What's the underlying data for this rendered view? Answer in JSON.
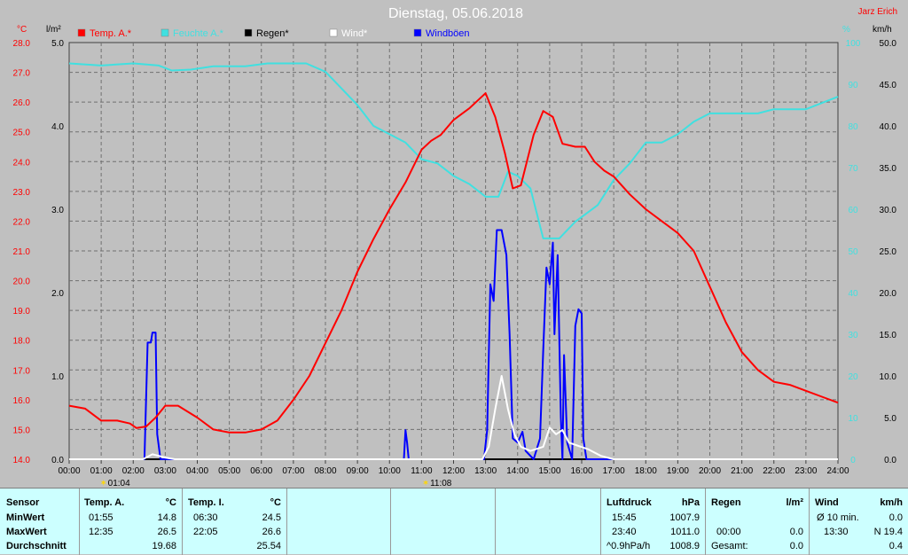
{
  "title": "Dienstag, 05.06.2018",
  "author": "Jarz Erich",
  "colors": {
    "temp": "#ff0000",
    "humidity": "#40e0e0",
    "rain": "#000000",
    "wind": "#ffffff",
    "gust": "#0000ff",
    "grid": "#707070",
    "axisLeft": "#ff0000",
    "axisHum": "#40e0e0"
  },
  "chart_data": {
    "type": "line",
    "title": "Dienstag, 05.06.2018",
    "legend": [
      {
        "label": "Temp. A.*",
        "color": "#ff0000"
      },
      {
        "label": "Feuchte A.*",
        "color": "#40e0e0"
      },
      {
        "label": "Regen*",
        "color": "#000000"
      },
      {
        "label": "Wind*",
        "color": "#ffffff"
      },
      {
        "label": "Windböen",
        "color": "#0000ff"
      }
    ],
    "axes": {
      "temp": {
        "unit": "°C",
        "min": 14.0,
        "max": 28.0,
        "ticks": [
          "14.0",
          "15.0",
          "16.0",
          "17.0",
          "18.0",
          "19.0",
          "20.0",
          "21.0",
          "22.0",
          "23.0",
          "24.0",
          "25.0",
          "26.0",
          "27.0",
          "28.0"
        ]
      },
      "rain": {
        "unit": "l/m²",
        "min": 0.0,
        "max": 5.0,
        "ticks": [
          "0.0",
          "1.0",
          "2.0",
          "3.0",
          "4.0",
          "5.0"
        ]
      },
      "humidity": {
        "unit": "%",
        "min": 0,
        "max": 100,
        "ticks": [
          "0",
          "10",
          "20",
          "30",
          "40",
          "50",
          "60",
          "70",
          "80",
          "90",
          "100"
        ]
      },
      "wind": {
        "unit": "km/h",
        "min": 0.0,
        "max": 50.0,
        "ticks": [
          "0.0",
          "5.0",
          "10.0",
          "15.0",
          "20.0",
          "25.0",
          "30.0",
          "35.0",
          "40.0",
          "45.0",
          "50.0"
        ]
      },
      "x": {
        "min": 0,
        "max": 24,
        "ticks": [
          "00:00",
          "01:00",
          "02:00",
          "03:00",
          "04:00",
          "05:00",
          "06:00",
          "07:00",
          "08:00",
          "09:00",
          "10:00",
          "11:00",
          "12:00",
          "13:00",
          "14:00",
          "15:00",
          "16:00",
          "17:00",
          "18:00",
          "19:00",
          "20:00",
          "21:00",
          "22:00",
          "23:00",
          "24:00"
        ]
      }
    },
    "markers": [
      {
        "label": "01:04",
        "x": 1.07
      },
      {
        "label": "11:08",
        "x": 11.13
      }
    ],
    "series": [
      {
        "name": "Temp. A.*",
        "axis": "temp",
        "points": [
          [
            0,
            15.8
          ],
          [
            0.5,
            15.7
          ],
          [
            1,
            15.3
          ],
          [
            1.5,
            15.3
          ],
          [
            1.9,
            15.2
          ],
          [
            2.1,
            15.05
          ],
          [
            2.4,
            15.1
          ],
          [
            2.7,
            15.4
          ],
          [
            3.0,
            15.8
          ],
          [
            3.4,
            15.8
          ],
          [
            4,
            15.4
          ],
          [
            4.5,
            15.0
          ],
          [
            5,
            14.9
          ],
          [
            5.5,
            14.9
          ],
          [
            6,
            15.0
          ],
          [
            6.5,
            15.3
          ],
          [
            7,
            16.0
          ],
          [
            7.5,
            16.8
          ],
          [
            8,
            17.9
          ],
          [
            8.5,
            19.0
          ],
          [
            9,
            20.3
          ],
          [
            9.5,
            21.4
          ],
          [
            10,
            22.4
          ],
          [
            10.5,
            23.3
          ],
          [
            11,
            24.4
          ],
          [
            11.3,
            24.7
          ],
          [
            11.6,
            24.9
          ],
          [
            12,
            25.4
          ],
          [
            12.5,
            25.8
          ],
          [
            12.8,
            26.1
          ],
          [
            13.0,
            26.3
          ],
          [
            13.3,
            25.5
          ],
          [
            13.6,
            24.3
          ],
          [
            13.85,
            23.1
          ],
          [
            14.1,
            23.2
          ],
          [
            14.5,
            24.9
          ],
          [
            14.8,
            25.7
          ],
          [
            15.1,
            25.5
          ],
          [
            15.4,
            24.6
          ],
          [
            15.8,
            24.5
          ],
          [
            16.1,
            24.5
          ],
          [
            16.4,
            24.0
          ],
          [
            16.7,
            23.7
          ],
          [
            17,
            23.5
          ],
          [
            17.5,
            22.9
          ],
          [
            18,
            22.4
          ],
          [
            18.5,
            22.0
          ],
          [
            19,
            21.6
          ],
          [
            19.5,
            21.0
          ],
          [
            20,
            19.8
          ],
          [
            20.5,
            18.6
          ],
          [
            21,
            17.6
          ],
          [
            21.5,
            17.0
          ],
          [
            22,
            16.6
          ],
          [
            22.5,
            16.5
          ],
          [
            23,
            16.3
          ],
          [
            23.5,
            16.1
          ],
          [
            24,
            15.9
          ]
        ]
      },
      {
        "name": "Feuchte A.*",
        "axis": "humidity",
        "points": [
          [
            0,
            95
          ],
          [
            1,
            94.5
          ],
          [
            2,
            95
          ],
          [
            2.8,
            94.5
          ],
          [
            3.2,
            93.3
          ],
          [
            3.8,
            93.5
          ],
          [
            4.5,
            94.3
          ],
          [
            5.5,
            94.3
          ],
          [
            6.2,
            95
          ],
          [
            7.4,
            95
          ],
          [
            8,
            93
          ],
          [
            8.5,
            89
          ],
          [
            9,
            85
          ],
          [
            9.5,
            80
          ],
          [
            10,
            78
          ],
          [
            10.5,
            76
          ],
          [
            11,
            72
          ],
          [
            11.5,
            71
          ],
          [
            12,
            68
          ],
          [
            12.5,
            66
          ],
          [
            13,
            63
          ],
          [
            13.4,
            63
          ],
          [
            13.7,
            69
          ],
          [
            14.0,
            68
          ],
          [
            14.4,
            65
          ],
          [
            14.8,
            53
          ],
          [
            15.3,
            53
          ],
          [
            15.8,
            57
          ],
          [
            16.5,
            61
          ],
          [
            17,
            67
          ],
          [
            17.5,
            71
          ],
          [
            18,
            76
          ],
          [
            18.5,
            76
          ],
          [
            19,
            78
          ],
          [
            19.5,
            81
          ],
          [
            20,
            83
          ],
          [
            21,
            83
          ],
          [
            21.5,
            83
          ],
          [
            22,
            84
          ],
          [
            23,
            84
          ],
          [
            24,
            87
          ]
        ]
      },
      {
        "name": "Regen*",
        "axis": "rain",
        "points": [
          [
            0,
            0
          ],
          [
            24,
            0
          ]
        ]
      },
      {
        "name": "Wind*",
        "axis": "wind",
        "points": [
          [
            0,
            0
          ],
          [
            2.3,
            0
          ],
          [
            2.6,
            0.6
          ],
          [
            3.0,
            0.2
          ],
          [
            3.3,
            0
          ],
          [
            12.9,
            0
          ],
          [
            13.1,
            1.5
          ],
          [
            13.3,
            6
          ],
          [
            13.5,
            10
          ],
          [
            13.7,
            6
          ],
          [
            13.9,
            3
          ],
          [
            14.1,
            1.5
          ],
          [
            14.4,
            1.0
          ],
          [
            14.8,
            1.5
          ],
          [
            15.0,
            3.8
          ],
          [
            15.2,
            3.0
          ],
          [
            15.4,
            3.5
          ],
          [
            15.6,
            2.0
          ],
          [
            15.9,
            1.6
          ],
          [
            16.2,
            1.2
          ],
          [
            16.6,
            0.4
          ],
          [
            17,
            0
          ],
          [
            24,
            0
          ]
        ]
      },
      {
        "name": "Windböen",
        "axis": "wind",
        "points": [
          [
            0,
            0
          ],
          [
            2.35,
            0
          ],
          [
            2.45,
            14
          ],
          [
            2.55,
            14
          ],
          [
            2.6,
            15.2
          ],
          [
            2.7,
            15.2
          ],
          [
            2.75,
            3.0
          ],
          [
            2.85,
            0
          ],
          [
            10.45,
            0
          ],
          [
            10.5,
            3.5
          ],
          [
            10.55,
            2.0
          ],
          [
            10.6,
            0
          ],
          [
            12.95,
            0
          ],
          [
            13.05,
            3.5
          ],
          [
            13.15,
            21
          ],
          [
            13.25,
            19
          ],
          [
            13.35,
            27.5
          ],
          [
            13.5,
            27.5
          ],
          [
            13.65,
            24.5
          ],
          [
            13.75,
            15
          ],
          [
            13.85,
            2.5
          ],
          [
            14.0,
            2.0
          ],
          [
            14.15,
            3.3
          ],
          [
            14.25,
            1.0
          ],
          [
            14.5,
            0
          ],
          [
            14.7,
            2.5
          ],
          [
            14.8,
            13
          ],
          [
            14.9,
            23
          ],
          [
            15.0,
            21
          ],
          [
            15.1,
            26
          ],
          [
            15.15,
            15
          ],
          [
            15.25,
            24.5
          ],
          [
            15.35,
            5
          ],
          [
            15.4,
            0
          ],
          [
            15.45,
            12.5
          ],
          [
            15.55,
            2.0
          ],
          [
            15.7,
            0
          ],
          [
            15.8,
            16
          ],
          [
            15.9,
            18
          ],
          [
            16.0,
            17.5
          ],
          [
            16.05,
            2.5
          ],
          [
            16.15,
            0
          ],
          [
            24,
            0
          ]
        ]
      }
    ]
  },
  "stats": {
    "sensor": {
      "header": "Sensor",
      "rows": [
        "MinWert",
        "MaxWert",
        "Durchschnitt"
      ]
    },
    "temp_a": {
      "header": "Temp. A.",
      "unit": "°C",
      "min_time": "01:55",
      "min_val": "14.8",
      "max_time": "12:35",
      "max_val": "26.5",
      "avg": "19.68"
    },
    "temp_i": {
      "header": "Temp. I.",
      "unit": "°C",
      "min_time": "06:30",
      "min_val": "24.5",
      "max_time": "22:05",
      "max_val": "26.6",
      "avg": "25.54"
    },
    "pressure": {
      "header": "Luftdruck",
      "unit": "hPa",
      "min_time": "15:45",
      "min_val": "1007.9",
      "max_time": "23:40",
      "max_val": "1011.0",
      "trend": "^0.9hPa/h",
      "avg": "1008.9"
    },
    "rain": {
      "header": "Regen",
      "unit": "l/m²",
      "row1_time": "00:00",
      "row1_val": "0.0",
      "total_label": "Gesamt:",
      "total_val": "0.0"
    },
    "wind": {
      "header": "Wind",
      "unit": "km/h",
      "avg_label": "Ø 10 min.",
      "avg_val": "0.0",
      "max_time": "13:30",
      "max_val": "N 19.4",
      "last_val": "0.4"
    }
  }
}
